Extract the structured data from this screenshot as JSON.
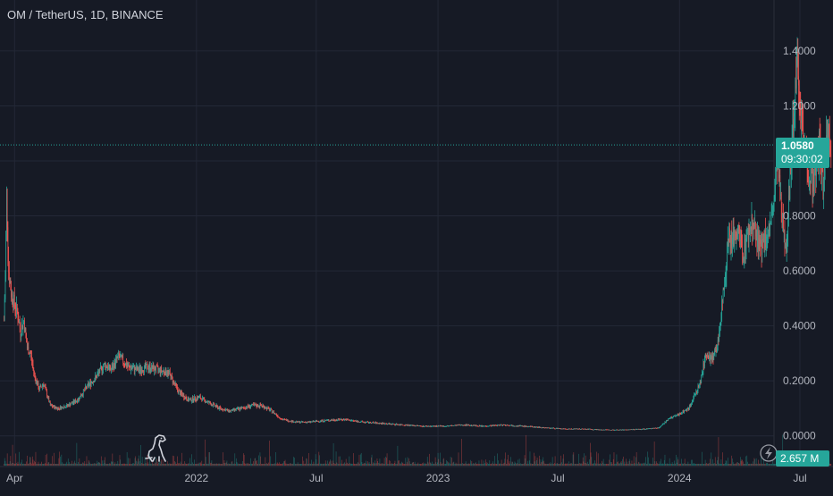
{
  "symbol_title": "OM / TetherUS, 1D, BINANCE",
  "colors": {
    "background": "#161a25",
    "grid": "#232836",
    "up": "#26a69a",
    "down": "#ef5350",
    "last_price_line": "#26a69a",
    "text": "#b2b5be"
  },
  "last_price": {
    "value": "1.0580",
    "countdown": "09:30:02"
  },
  "volume": {
    "label": "2.657 M"
  },
  "icons": {
    "brand": "dinosaur-logo-icon",
    "alert": "lightning-icon"
  },
  "chart_data": {
    "type": "candlestick",
    "y_axis": {
      "ticks": [
        "1.4000",
        "1.2000",
        "1.0000",
        "0.8000",
        "0.6000",
        "0.4000",
        "0.2000",
        "0.0000"
      ],
      "tick_values": [
        1.4,
        1.2,
        1.0,
        0.8,
        0.6,
        0.4,
        0.2,
        0.0
      ],
      "range": [
        -0.04,
        1.52
      ]
    },
    "x_axis": {
      "labels": [
        "Apr",
        "2022",
        "Jul",
        "2023",
        "Jul",
        "2024",
        "Jul"
      ],
      "label_dates": [
        "2021-04-01",
        "2022-01-01",
        "2022-07-01",
        "2023-01-01",
        "2023-07-01",
        "2024-01-01",
        "2024-07-01"
      ],
      "range": [
        "2021-03-10",
        "2024-08-20"
      ]
    },
    "series": [
      {
        "kind": "price_path",
        "points": [
          [
            "2021-03-16",
            0.42
          ],
          [
            "2021-03-18",
            0.58
          ],
          [
            "2021-03-20",
            0.88
          ],
          [
            "2021-03-23",
            0.6
          ],
          [
            "2021-03-27",
            0.52
          ],
          [
            "2021-04-01",
            0.48
          ],
          [
            "2021-04-05",
            0.45
          ],
          [
            "2021-04-10",
            0.38
          ],
          [
            "2021-04-15",
            0.42
          ],
          [
            "2021-04-20",
            0.32
          ],
          [
            "2021-04-25",
            0.3
          ],
          [
            "2021-05-01",
            0.22
          ],
          [
            "2021-05-08",
            0.17
          ],
          [
            "2021-05-15",
            0.19
          ],
          [
            "2021-05-25",
            0.11
          ],
          [
            "2021-06-05",
            0.1
          ],
          [
            "2021-06-20",
            0.11
          ],
          [
            "2021-07-05",
            0.13
          ],
          [
            "2021-07-20",
            0.18
          ],
          [
            "2021-08-01",
            0.21
          ],
          [
            "2021-08-15",
            0.26
          ],
          [
            "2021-08-25",
            0.24
          ],
          [
            "2021-09-05",
            0.29
          ],
          [
            "2021-09-20",
            0.25
          ],
          [
            "2021-10-05",
            0.24
          ],
          [
            "2021-10-20",
            0.25
          ],
          [
            "2021-11-05",
            0.24
          ],
          [
            "2021-11-20",
            0.23
          ],
          [
            "2021-12-05",
            0.16
          ],
          [
            "2021-12-20",
            0.13
          ],
          [
            "2022-01-05",
            0.14
          ],
          [
            "2022-01-20",
            0.12
          ],
          [
            "2022-02-05",
            0.1
          ],
          [
            "2022-02-20",
            0.09
          ],
          [
            "2022-03-10",
            0.1
          ],
          [
            "2022-03-25",
            0.11
          ],
          [
            "2022-04-10",
            0.11
          ],
          [
            "2022-04-25",
            0.09
          ],
          [
            "2022-05-10",
            0.06
          ],
          [
            "2022-06-01",
            0.05
          ],
          [
            "2022-06-20",
            0.05
          ],
          [
            "2022-07-10",
            0.055
          ],
          [
            "2022-08-10",
            0.06
          ],
          [
            "2022-09-10",
            0.05
          ],
          [
            "2022-10-10",
            0.045
          ],
          [
            "2022-11-10",
            0.04
          ],
          [
            "2022-12-10",
            0.035
          ],
          [
            "2023-01-10",
            0.035
          ],
          [
            "2023-02-10",
            0.04
          ],
          [
            "2023-03-10",
            0.035
          ],
          [
            "2023-04-10",
            0.04
          ],
          [
            "2023-05-10",
            0.035
          ],
          [
            "2023-06-10",
            0.03
          ],
          [
            "2023-07-10",
            0.025
          ],
          [
            "2023-08-10",
            0.025
          ],
          [
            "2023-09-10",
            0.022
          ],
          [
            "2023-10-10",
            0.022
          ],
          [
            "2023-11-10",
            0.025
          ],
          [
            "2023-12-01",
            0.03
          ],
          [
            "2023-12-15",
            0.06
          ],
          [
            "2024-01-01",
            0.08
          ],
          [
            "2024-01-15",
            0.1
          ],
          [
            "2024-02-01",
            0.19
          ],
          [
            "2024-02-10",
            0.3
          ],
          [
            "2024-02-20",
            0.28
          ],
          [
            "2024-02-28",
            0.33
          ],
          [
            "2024-03-05",
            0.48
          ],
          [
            "2024-03-10",
            0.58
          ],
          [
            "2024-03-15",
            0.74
          ],
          [
            "2024-03-20",
            0.7
          ],
          [
            "2024-03-28",
            0.75
          ],
          [
            "2024-04-05",
            0.66
          ],
          [
            "2024-04-12",
            0.72
          ],
          [
            "2024-04-20",
            0.78
          ],
          [
            "2024-05-01",
            0.68
          ],
          [
            "2024-05-10",
            0.72
          ],
          [
            "2024-05-20",
            0.78
          ],
          [
            "2024-05-28",
            1.0
          ],
          [
            "2024-06-03",
            0.8
          ],
          [
            "2024-06-10",
            0.7
          ],
          [
            "2024-06-20",
            1.1
          ],
          [
            "2024-06-26",
            1.38
          ],
          [
            "2024-07-02",
            1.2
          ],
          [
            "2024-07-08",
            1.05
          ],
          [
            "2024-07-15",
            0.95
          ],
          [
            "2024-07-22",
            0.92
          ],
          [
            "2024-07-30",
            1.06
          ],
          [
            "2024-08-05",
            0.9
          ],
          [
            "2024-08-12",
            1.12
          ],
          [
            "2024-08-17",
            1.058
          ]
        ]
      }
    ]
  }
}
